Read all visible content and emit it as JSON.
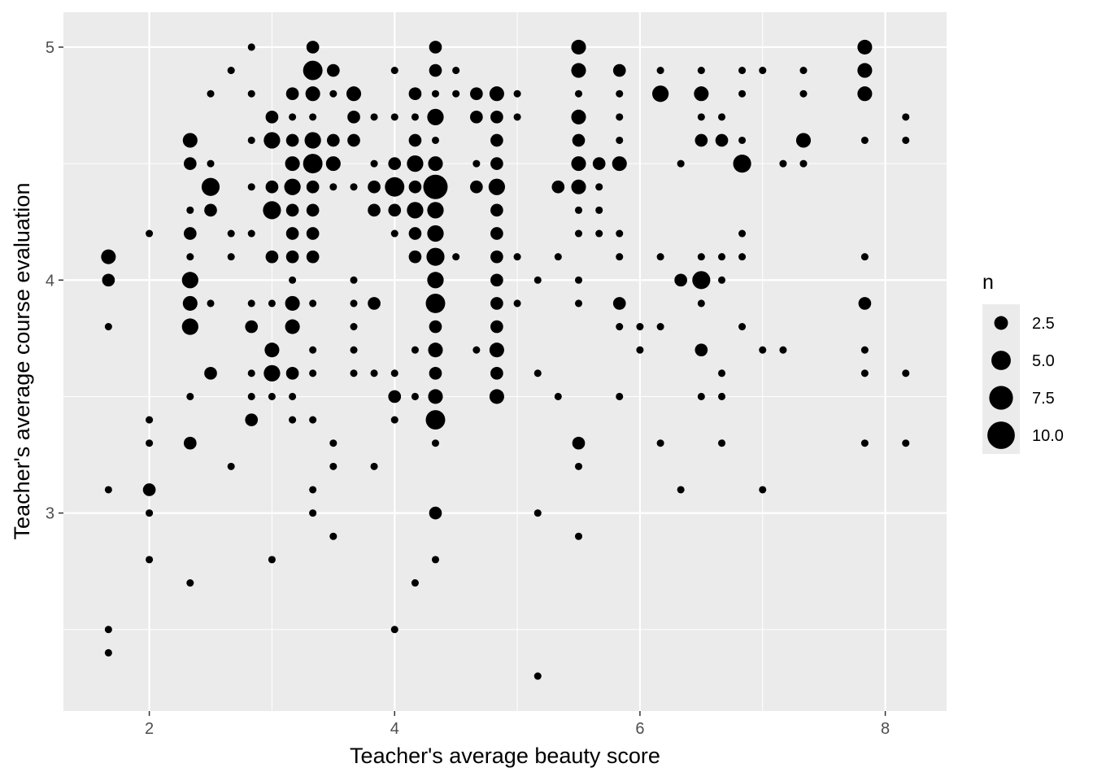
{
  "chart_data": {
    "type": "scatter",
    "title": "",
    "xlabel": "Teacher's average beauty score",
    "ylabel": "Teacher's average course evaluation",
    "xlim": [
      1.3,
      8.5
    ],
    "ylim": [
      2.15,
      5.15
    ],
    "x_ticks": [
      2,
      4,
      6,
      8
    ],
    "x_tick_labels": [
      "2",
      "4",
      "6",
      "8"
    ],
    "y_ticks": [
      3,
      4,
      5
    ],
    "y_tick_labels": [
      "3",
      "4",
      "5"
    ],
    "grid": true,
    "background_color": "#ebebeb",
    "grid_color": "#ffffff",
    "point_color": "#000000",
    "size_legend": {
      "title": "n",
      "position": "right",
      "values": [
        2.5,
        5.0,
        7.5,
        10.0
      ],
      "labels": [
        "2.5",
        "5.0",
        "7.5",
        "10.0"
      ]
    },
    "points": [
      {
        "x": 1.667,
        "y": 4.1,
        "n": 4
      },
      {
        "x": 1.667,
        "y": 4.0,
        "n": 3
      },
      {
        "x": 1.667,
        "y": 3.8,
        "n": 1
      },
      {
        "x": 1.667,
        "y": 3.1,
        "n": 1
      },
      {
        "x": 1.667,
        "y": 2.5,
        "n": 1
      },
      {
        "x": 1.667,
        "y": 2.4,
        "n": 1
      },
      {
        "x": 2.0,
        "y": 4.2,
        "n": 1
      },
      {
        "x": 2.0,
        "y": 3.4,
        "n": 1
      },
      {
        "x": 2.0,
        "y": 3.3,
        "n": 1
      },
      {
        "x": 2.0,
        "y": 3.1,
        "n": 3
      },
      {
        "x": 2.0,
        "y": 3.0,
        "n": 1
      },
      {
        "x": 2.0,
        "y": 2.8,
        "n": 1
      },
      {
        "x": 2.333,
        "y": 4.6,
        "n": 4
      },
      {
        "x": 2.333,
        "y": 4.5,
        "n": 3
      },
      {
        "x": 2.333,
        "y": 4.3,
        "n": 1
      },
      {
        "x": 2.333,
        "y": 4.2,
        "n": 3
      },
      {
        "x": 2.333,
        "y": 4.1,
        "n": 1
      },
      {
        "x": 2.333,
        "y": 4.0,
        "n": 5
      },
      {
        "x": 2.333,
        "y": 3.9,
        "n": 4
      },
      {
        "x": 2.333,
        "y": 3.8,
        "n": 5
      },
      {
        "x": 2.333,
        "y": 3.5,
        "n": 1
      },
      {
        "x": 2.333,
        "y": 3.3,
        "n": 3
      },
      {
        "x": 2.333,
        "y": 2.7,
        "n": 1
      },
      {
        "x": 2.5,
        "y": 4.8,
        "n": 1
      },
      {
        "x": 2.5,
        "y": 4.5,
        "n": 1
      },
      {
        "x": 2.5,
        "y": 4.4,
        "n": 6
      },
      {
        "x": 2.5,
        "y": 4.3,
        "n": 3
      },
      {
        "x": 2.5,
        "y": 3.9,
        "n": 1
      },
      {
        "x": 2.5,
        "y": 3.6,
        "n": 3
      },
      {
        "x": 2.667,
        "y": 4.9,
        "n": 1
      },
      {
        "x": 2.667,
        "y": 4.2,
        "n": 1
      },
      {
        "x": 2.667,
        "y": 4.1,
        "n": 1
      },
      {
        "x": 2.667,
        "y": 3.2,
        "n": 1
      },
      {
        "x": 2.833,
        "y": 5.0,
        "n": 1
      },
      {
        "x": 2.833,
        "y": 4.8,
        "n": 1
      },
      {
        "x": 2.833,
        "y": 4.6,
        "n": 1
      },
      {
        "x": 2.833,
        "y": 4.4,
        "n": 1
      },
      {
        "x": 2.833,
        "y": 4.2,
        "n": 1
      },
      {
        "x": 2.833,
        "y": 3.9,
        "n": 1
      },
      {
        "x": 2.833,
        "y": 3.8,
        "n": 3
      },
      {
        "x": 2.833,
        "y": 3.6,
        "n": 1
      },
      {
        "x": 2.833,
        "y": 3.5,
        "n": 1
      },
      {
        "x": 2.833,
        "y": 3.4,
        "n": 3
      },
      {
        "x": 3.0,
        "y": 4.7,
        "n": 3
      },
      {
        "x": 3.0,
        "y": 4.6,
        "n": 5
      },
      {
        "x": 3.0,
        "y": 4.4,
        "n": 3
      },
      {
        "x": 3.0,
        "y": 4.3,
        "n": 6
      },
      {
        "x": 3.0,
        "y": 4.1,
        "n": 3
      },
      {
        "x": 3.0,
        "y": 3.9,
        "n": 1
      },
      {
        "x": 3.0,
        "y": 3.7,
        "n": 4
      },
      {
        "x": 3.0,
        "y": 3.6,
        "n": 5
      },
      {
        "x": 3.0,
        "y": 3.5,
        "n": 1
      },
      {
        "x": 3.0,
        "y": 2.8,
        "n": 1
      },
      {
        "x": 3.167,
        "y": 4.8,
        "n": 3
      },
      {
        "x": 3.167,
        "y": 4.7,
        "n": 1
      },
      {
        "x": 3.167,
        "y": 4.6,
        "n": 3
      },
      {
        "x": 3.167,
        "y": 4.5,
        "n": 4
      },
      {
        "x": 3.167,
        "y": 4.4,
        "n": 5
      },
      {
        "x": 3.167,
        "y": 4.3,
        "n": 3
      },
      {
        "x": 3.167,
        "y": 4.2,
        "n": 3
      },
      {
        "x": 3.167,
        "y": 4.1,
        "n": 3
      },
      {
        "x": 3.167,
        "y": 4.0,
        "n": 1
      },
      {
        "x": 3.167,
        "y": 3.9,
        "n": 4
      },
      {
        "x": 3.167,
        "y": 3.8,
        "n": 4
      },
      {
        "x": 3.167,
        "y": 3.6,
        "n": 3
      },
      {
        "x": 3.167,
        "y": 3.5,
        "n": 1
      },
      {
        "x": 3.167,
        "y": 3.4,
        "n": 1
      },
      {
        "x": 3.333,
        "y": 5.0,
        "n": 3
      },
      {
        "x": 3.333,
        "y": 4.9,
        "n": 7
      },
      {
        "x": 3.333,
        "y": 4.8,
        "n": 4
      },
      {
        "x": 3.333,
        "y": 4.7,
        "n": 1
      },
      {
        "x": 3.333,
        "y": 4.6,
        "n": 5
      },
      {
        "x": 3.333,
        "y": 4.5,
        "n": 7
      },
      {
        "x": 3.333,
        "y": 4.4,
        "n": 3
      },
      {
        "x": 3.333,
        "y": 4.3,
        "n": 3
      },
      {
        "x": 3.333,
        "y": 4.2,
        "n": 3
      },
      {
        "x": 3.333,
        "y": 4.1,
        "n": 3
      },
      {
        "x": 3.333,
        "y": 3.9,
        "n": 1
      },
      {
        "x": 3.333,
        "y": 3.7,
        "n": 1
      },
      {
        "x": 3.333,
        "y": 3.6,
        "n": 1
      },
      {
        "x": 3.333,
        "y": 3.4,
        "n": 1
      },
      {
        "x": 3.333,
        "y": 3.1,
        "n": 1
      },
      {
        "x": 3.333,
        "y": 3.0,
        "n": 1
      },
      {
        "x": 3.5,
        "y": 4.9,
        "n": 3
      },
      {
        "x": 3.5,
        "y": 4.8,
        "n": 1
      },
      {
        "x": 3.5,
        "y": 4.6,
        "n": 3
      },
      {
        "x": 3.5,
        "y": 4.5,
        "n": 4
      },
      {
        "x": 3.5,
        "y": 4.4,
        "n": 1
      },
      {
        "x": 3.5,
        "y": 3.3,
        "n": 1
      },
      {
        "x": 3.5,
        "y": 3.2,
        "n": 1
      },
      {
        "x": 3.5,
        "y": 2.9,
        "n": 1
      },
      {
        "x": 3.667,
        "y": 4.8,
        "n": 4
      },
      {
        "x": 3.667,
        "y": 4.7,
        "n": 3
      },
      {
        "x": 3.667,
        "y": 4.6,
        "n": 3
      },
      {
        "x": 3.667,
        "y": 4.4,
        "n": 1
      },
      {
        "x": 3.667,
        "y": 4.0,
        "n": 1
      },
      {
        "x": 3.667,
        "y": 3.9,
        "n": 1
      },
      {
        "x": 3.667,
        "y": 3.8,
        "n": 1
      },
      {
        "x": 3.667,
        "y": 3.7,
        "n": 1
      },
      {
        "x": 3.667,
        "y": 3.6,
        "n": 1
      },
      {
        "x": 3.833,
        "y": 4.7,
        "n": 1
      },
      {
        "x": 3.833,
        "y": 4.5,
        "n": 1
      },
      {
        "x": 3.833,
        "y": 4.4,
        "n": 3
      },
      {
        "x": 3.833,
        "y": 4.3,
        "n": 3
      },
      {
        "x": 3.833,
        "y": 3.9,
        "n": 3
      },
      {
        "x": 3.833,
        "y": 3.6,
        "n": 1
      },
      {
        "x": 3.833,
        "y": 3.2,
        "n": 1
      },
      {
        "x": 4.0,
        "y": 4.9,
        "n": 1
      },
      {
        "x": 4.0,
        "y": 4.7,
        "n": 1
      },
      {
        "x": 4.0,
        "y": 4.5,
        "n": 3
      },
      {
        "x": 4.0,
        "y": 4.4,
        "n": 7
      },
      {
        "x": 4.0,
        "y": 4.3,
        "n": 3
      },
      {
        "x": 4.0,
        "y": 4.2,
        "n": 1
      },
      {
        "x": 4.0,
        "y": 3.6,
        "n": 1
      },
      {
        "x": 4.0,
        "y": 3.5,
        "n": 3
      },
      {
        "x": 4.0,
        "y": 3.4,
        "n": 1
      },
      {
        "x": 4.0,
        "y": 2.5,
        "n": 1
      },
      {
        "x": 4.167,
        "y": 4.8,
        "n": 3
      },
      {
        "x": 4.167,
        "y": 4.7,
        "n": 1
      },
      {
        "x": 4.167,
        "y": 4.6,
        "n": 3
      },
      {
        "x": 4.167,
        "y": 4.5,
        "n": 5
      },
      {
        "x": 4.167,
        "y": 4.4,
        "n": 3
      },
      {
        "x": 4.167,
        "y": 4.3,
        "n": 5
      },
      {
        "x": 4.167,
        "y": 4.2,
        "n": 3
      },
      {
        "x": 4.167,
        "y": 4.1,
        "n": 3
      },
      {
        "x": 4.167,
        "y": 3.7,
        "n": 1
      },
      {
        "x": 4.167,
        "y": 3.5,
        "n": 1
      },
      {
        "x": 4.167,
        "y": 2.7,
        "n": 1
      },
      {
        "x": 4.333,
        "y": 5.0,
        "n": 3
      },
      {
        "x": 4.333,
        "y": 4.9,
        "n": 3
      },
      {
        "x": 4.333,
        "y": 4.8,
        "n": 1
      },
      {
        "x": 4.333,
        "y": 4.7,
        "n": 5
      },
      {
        "x": 4.333,
        "y": 4.6,
        "n": 1
      },
      {
        "x": 4.333,
        "y": 4.5,
        "n": 4
      },
      {
        "x": 4.333,
        "y": 4.4,
        "n": 11
      },
      {
        "x": 4.333,
        "y": 4.3,
        "n": 5
      },
      {
        "x": 4.333,
        "y": 4.2,
        "n": 5
      },
      {
        "x": 4.333,
        "y": 4.1,
        "n": 6
      },
      {
        "x": 4.333,
        "y": 4.0,
        "n": 5
      },
      {
        "x": 4.333,
        "y": 3.9,
        "n": 7
      },
      {
        "x": 4.333,
        "y": 3.8,
        "n": 3
      },
      {
        "x": 4.333,
        "y": 3.7,
        "n": 4
      },
      {
        "x": 4.333,
        "y": 3.6,
        "n": 3
      },
      {
        "x": 4.333,
        "y": 3.5,
        "n": 4
      },
      {
        "x": 4.333,
        "y": 3.4,
        "n": 7
      },
      {
        "x": 4.333,
        "y": 3.3,
        "n": 1
      },
      {
        "x": 4.333,
        "y": 3.0,
        "n": 3
      },
      {
        "x": 4.333,
        "y": 2.8,
        "n": 1
      },
      {
        "x": 4.5,
        "y": 4.9,
        "n": 1
      },
      {
        "x": 4.5,
        "y": 4.8,
        "n": 1
      },
      {
        "x": 4.5,
        "y": 4.1,
        "n": 1
      },
      {
        "x": 4.667,
        "y": 4.8,
        "n": 3
      },
      {
        "x": 4.667,
        "y": 4.7,
        "n": 3
      },
      {
        "x": 4.667,
        "y": 4.5,
        "n": 1
      },
      {
        "x": 4.667,
        "y": 4.4,
        "n": 3
      },
      {
        "x": 4.667,
        "y": 3.7,
        "n": 1
      },
      {
        "x": 4.833,
        "y": 4.8,
        "n": 4
      },
      {
        "x": 4.833,
        "y": 4.7,
        "n": 3
      },
      {
        "x": 4.833,
        "y": 4.6,
        "n": 3
      },
      {
        "x": 4.833,
        "y": 4.5,
        "n": 3
      },
      {
        "x": 4.833,
        "y": 4.4,
        "n": 5
      },
      {
        "x": 4.833,
        "y": 4.3,
        "n": 3
      },
      {
        "x": 4.833,
        "y": 4.2,
        "n": 3
      },
      {
        "x": 4.833,
        "y": 4.1,
        "n": 3
      },
      {
        "x": 4.833,
        "y": 4.0,
        "n": 3
      },
      {
        "x": 4.833,
        "y": 3.9,
        "n": 3
      },
      {
        "x": 4.833,
        "y": 3.8,
        "n": 3
      },
      {
        "x": 4.833,
        "y": 3.7,
        "n": 4
      },
      {
        "x": 4.833,
        "y": 3.6,
        "n": 3
      },
      {
        "x": 4.833,
        "y": 3.5,
        "n": 4
      },
      {
        "x": 5.0,
        "y": 4.8,
        "n": 1
      },
      {
        "x": 5.0,
        "y": 4.7,
        "n": 1
      },
      {
        "x": 5.0,
        "y": 4.1,
        "n": 1
      },
      {
        "x": 5.0,
        "y": 3.9,
        "n": 1
      },
      {
        "x": 5.167,
        "y": 4.0,
        "n": 1
      },
      {
        "x": 5.167,
        "y": 3.6,
        "n": 1
      },
      {
        "x": 5.167,
        "y": 3.0,
        "n": 1
      },
      {
        "x": 5.167,
        "y": 2.3,
        "n": 1
      },
      {
        "x": 5.333,
        "y": 4.4,
        "n": 3
      },
      {
        "x": 5.333,
        "y": 4.1,
        "n": 1
      },
      {
        "x": 5.333,
        "y": 3.5,
        "n": 1
      },
      {
        "x": 5.5,
        "y": 5.0,
        "n": 4
      },
      {
        "x": 5.5,
        "y": 4.9,
        "n": 4
      },
      {
        "x": 5.5,
        "y": 4.8,
        "n": 1
      },
      {
        "x": 5.5,
        "y": 4.7,
        "n": 4
      },
      {
        "x": 5.5,
        "y": 4.6,
        "n": 3
      },
      {
        "x": 5.5,
        "y": 4.5,
        "n": 4
      },
      {
        "x": 5.5,
        "y": 4.4,
        "n": 4
      },
      {
        "x": 5.5,
        "y": 4.3,
        "n": 1
      },
      {
        "x": 5.5,
        "y": 4.2,
        "n": 1
      },
      {
        "x": 5.5,
        "y": 4.0,
        "n": 1
      },
      {
        "x": 5.5,
        "y": 3.9,
        "n": 1
      },
      {
        "x": 5.5,
        "y": 3.3,
        "n": 3
      },
      {
        "x": 5.5,
        "y": 3.2,
        "n": 1
      },
      {
        "x": 5.5,
        "y": 2.9,
        "n": 1
      },
      {
        "x": 5.667,
        "y": 4.5,
        "n": 3
      },
      {
        "x": 5.667,
        "y": 4.4,
        "n": 1
      },
      {
        "x": 5.667,
        "y": 4.3,
        "n": 1
      },
      {
        "x": 5.667,
        "y": 4.2,
        "n": 1
      },
      {
        "x": 5.833,
        "y": 4.9,
        "n": 3
      },
      {
        "x": 5.833,
        "y": 4.8,
        "n": 1
      },
      {
        "x": 5.833,
        "y": 4.7,
        "n": 1
      },
      {
        "x": 5.833,
        "y": 4.6,
        "n": 1
      },
      {
        "x": 5.833,
        "y": 4.5,
        "n": 4
      },
      {
        "x": 5.833,
        "y": 4.2,
        "n": 1
      },
      {
        "x": 5.833,
        "y": 4.1,
        "n": 1
      },
      {
        "x": 5.833,
        "y": 3.9,
        "n": 3
      },
      {
        "x": 5.833,
        "y": 3.8,
        "n": 1
      },
      {
        "x": 5.833,
        "y": 3.5,
        "n": 1
      },
      {
        "x": 6.0,
        "y": 3.8,
        "n": 1
      },
      {
        "x": 6.0,
        "y": 3.7,
        "n": 1
      },
      {
        "x": 6.167,
        "y": 4.9,
        "n": 1
      },
      {
        "x": 6.167,
        "y": 4.8,
        "n": 5
      },
      {
        "x": 6.167,
        "y": 4.1,
        "n": 1
      },
      {
        "x": 6.167,
        "y": 3.8,
        "n": 1
      },
      {
        "x": 6.167,
        "y": 3.3,
        "n": 1
      },
      {
        "x": 6.333,
        "y": 4.5,
        "n": 1
      },
      {
        "x": 6.333,
        "y": 4.0,
        "n": 3
      },
      {
        "x": 6.333,
        "y": 3.1,
        "n": 1
      },
      {
        "x": 6.5,
        "y": 4.9,
        "n": 1
      },
      {
        "x": 6.5,
        "y": 4.8,
        "n": 4
      },
      {
        "x": 6.5,
        "y": 4.7,
        "n": 1
      },
      {
        "x": 6.5,
        "y": 4.6,
        "n": 3
      },
      {
        "x": 6.5,
        "y": 4.1,
        "n": 1
      },
      {
        "x": 6.5,
        "y": 4.0,
        "n": 6
      },
      {
        "x": 6.5,
        "y": 3.9,
        "n": 1
      },
      {
        "x": 6.5,
        "y": 3.7,
        "n": 3
      },
      {
        "x": 6.5,
        "y": 3.5,
        "n": 1
      },
      {
        "x": 6.667,
        "y": 4.7,
        "n": 1
      },
      {
        "x": 6.667,
        "y": 4.6,
        "n": 3
      },
      {
        "x": 6.667,
        "y": 4.1,
        "n": 1
      },
      {
        "x": 6.667,
        "y": 4.0,
        "n": 1
      },
      {
        "x": 6.667,
        "y": 3.6,
        "n": 1
      },
      {
        "x": 6.667,
        "y": 3.5,
        "n": 1
      },
      {
        "x": 6.667,
        "y": 3.3,
        "n": 1
      },
      {
        "x": 6.833,
        "y": 4.9,
        "n": 1
      },
      {
        "x": 6.833,
        "y": 4.8,
        "n": 1
      },
      {
        "x": 6.833,
        "y": 4.6,
        "n": 1
      },
      {
        "x": 6.833,
        "y": 4.5,
        "n": 6
      },
      {
        "x": 6.833,
        "y": 4.2,
        "n": 1
      },
      {
        "x": 6.833,
        "y": 4.1,
        "n": 1
      },
      {
        "x": 6.833,
        "y": 3.8,
        "n": 1
      },
      {
        "x": 7.0,
        "y": 4.9,
        "n": 1
      },
      {
        "x": 7.0,
        "y": 3.7,
        "n": 1
      },
      {
        "x": 7.0,
        "y": 3.1,
        "n": 1
      },
      {
        "x": 7.167,
        "y": 4.5,
        "n": 1
      },
      {
        "x": 7.167,
        "y": 3.7,
        "n": 1
      },
      {
        "x": 7.333,
        "y": 4.9,
        "n": 1
      },
      {
        "x": 7.333,
        "y": 4.8,
        "n": 1
      },
      {
        "x": 7.333,
        "y": 4.6,
        "n": 4
      },
      {
        "x": 7.333,
        "y": 4.5,
        "n": 1
      },
      {
        "x": 7.833,
        "y": 5.0,
        "n": 4
      },
      {
        "x": 7.833,
        "y": 4.9,
        "n": 4
      },
      {
        "x": 7.833,
        "y": 4.8,
        "n": 4
      },
      {
        "x": 7.833,
        "y": 4.6,
        "n": 1
      },
      {
        "x": 7.833,
        "y": 4.1,
        "n": 1
      },
      {
        "x": 7.833,
        "y": 3.9,
        "n": 3
      },
      {
        "x": 7.833,
        "y": 3.7,
        "n": 1
      },
      {
        "x": 7.833,
        "y": 3.6,
        "n": 1
      },
      {
        "x": 7.833,
        "y": 3.3,
        "n": 1
      },
      {
        "x": 8.167,
        "y": 4.7,
        "n": 1
      },
      {
        "x": 8.167,
        "y": 4.6,
        "n": 1
      },
      {
        "x": 8.167,
        "y": 3.6,
        "n": 1
      },
      {
        "x": 8.167,
        "y": 3.3,
        "n": 1
      }
    ]
  }
}
